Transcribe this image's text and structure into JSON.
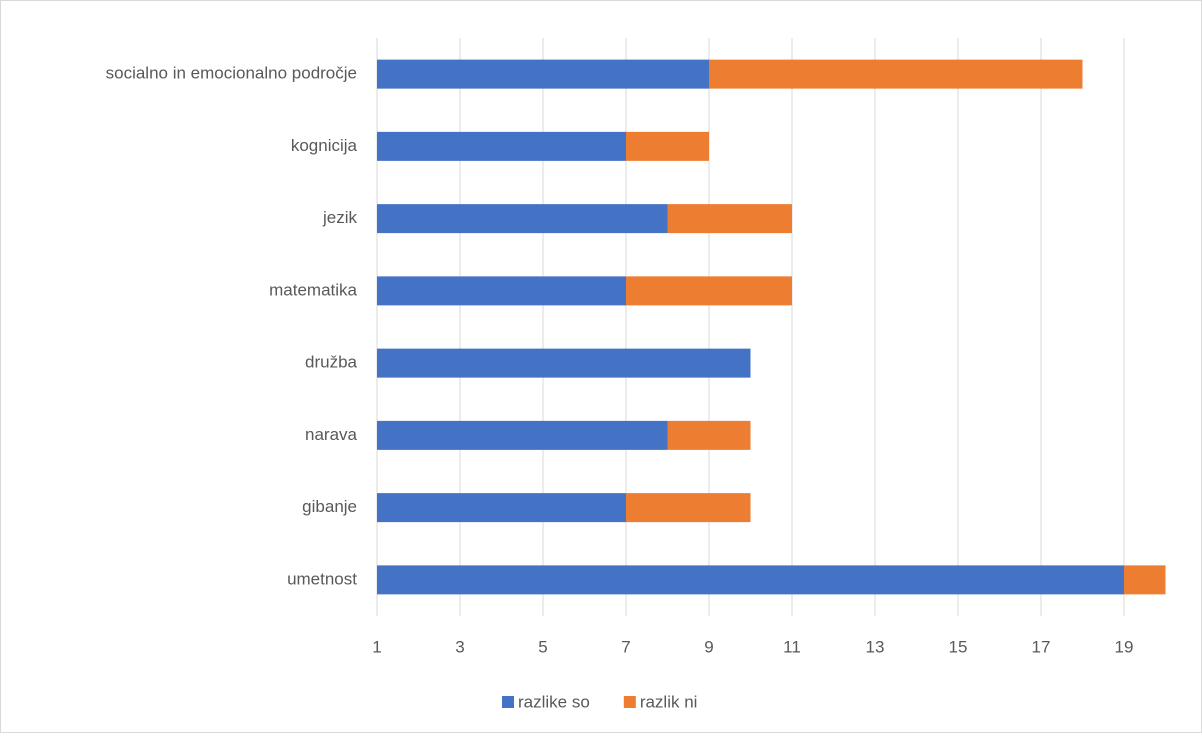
{
  "chart_data": {
    "type": "stacked_bar_horizontal",
    "categories": [
      "socialno in emocionalno področje",
      "kognicija",
      "jezik",
      "matematika",
      "družba",
      "narava",
      "gibanje",
      "umetnost"
    ],
    "series": [
      {
        "name": "razlike so",
        "color": "#4472c4",
        "values": [
          9,
          7,
          8,
          7,
          10,
          8,
          7,
          19
        ]
      },
      {
        "name": "razlik ni",
        "color": "#ed7d31",
        "values": [
          9,
          2,
          3,
          4,
          0,
          2,
          3,
          1
        ]
      }
    ],
    "xlim": [
      1,
      20
    ],
    "xticks": [
      1,
      3,
      5,
      7,
      9,
      11,
      13,
      15,
      17,
      19
    ],
    "grid": true,
    "legend": "bottom"
  }
}
